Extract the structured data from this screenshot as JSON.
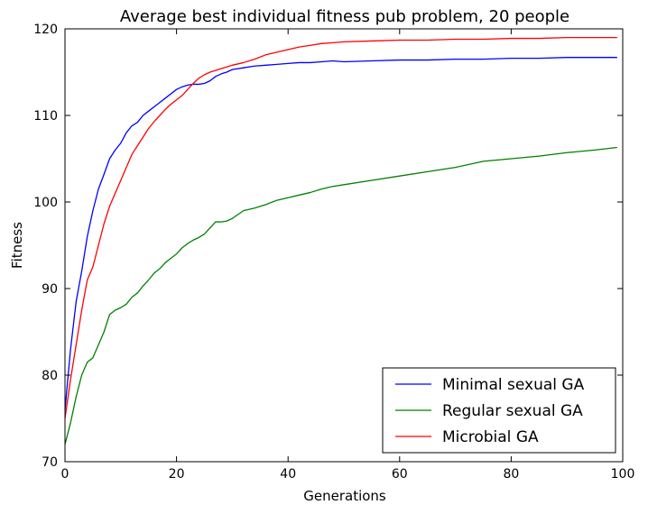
{
  "chart_data": {
    "type": "line",
    "title": "Average best individual fitness pub problem, 20 people",
    "xlabel": "Generations",
    "ylabel": "Fitness",
    "xlim": [
      0,
      100
    ],
    "ylim": [
      70,
      120
    ],
    "xticks": [
      0,
      20,
      40,
      60,
      80,
      100
    ],
    "yticks": [
      70,
      80,
      90,
      100,
      110,
      120
    ],
    "grid": false,
    "legend_position": "lower-right",
    "series": [
      {
        "name": "Minimal sexual GA",
        "color": "#0000ff",
        "x": [
          0,
          1,
          2,
          3,
          4,
          5,
          6,
          7,
          8,
          9,
          10,
          11,
          12,
          13,
          14,
          15,
          16,
          17,
          18,
          19,
          20,
          21,
          22,
          23,
          24,
          25,
          26,
          27,
          28,
          29,
          30,
          32,
          34,
          36,
          38,
          40,
          42,
          44,
          46,
          48,
          50,
          55,
          60,
          65,
          70,
          75,
          80,
          85,
          90,
          95,
          99
        ],
        "y": [
          76.0,
          83.0,
          88.5,
          92.0,
          96.0,
          99.0,
          101.5,
          103.2,
          105.0,
          106.0,
          106.8,
          108.0,
          108.8,
          109.2,
          110.0,
          110.5,
          111.0,
          111.5,
          112.0,
          112.5,
          113.0,
          113.3,
          113.5,
          113.6,
          113.6,
          113.7,
          114.0,
          114.5,
          114.8,
          115.0,
          115.3,
          115.5,
          115.7,
          115.8,
          115.9,
          116.0,
          116.1,
          116.1,
          116.2,
          116.3,
          116.2,
          116.3,
          116.4,
          116.4,
          116.5,
          116.5,
          116.6,
          116.6,
          116.7,
          116.7,
          116.7
        ]
      },
      {
        "name": "Regular sexual GA",
        "color": "#008000",
        "x": [
          0,
          1,
          2,
          3,
          4,
          5,
          6,
          7,
          8,
          9,
          10,
          11,
          12,
          13,
          14,
          15,
          16,
          17,
          18,
          19,
          20,
          21,
          22,
          23,
          24,
          25,
          26,
          27,
          28,
          29,
          30,
          32,
          34,
          36,
          38,
          40,
          42,
          44,
          46,
          48,
          50,
          55,
          60,
          65,
          70,
          75,
          80,
          85,
          90,
          95,
          99
        ],
        "y": [
          72.0,
          74.5,
          77.5,
          80.0,
          81.5,
          82.0,
          83.5,
          85.0,
          87.0,
          87.5,
          87.8,
          88.2,
          89.0,
          89.5,
          90.3,
          91.0,
          91.8,
          92.3,
          93.0,
          93.5,
          94.0,
          94.7,
          95.2,
          95.6,
          95.9,
          96.3,
          97.0,
          97.7,
          97.7,
          97.8,
          98.1,
          99.0,
          99.3,
          99.7,
          100.2,
          100.5,
          100.8,
          101.1,
          101.5,
          101.8,
          102.0,
          102.5,
          103.0,
          103.5,
          104.0,
          104.7,
          105.0,
          105.3,
          105.7,
          106.0,
          106.3
        ]
      },
      {
        "name": "Microbial GA",
        "color": "#ff0000",
        "x": [
          0,
          1,
          2,
          3,
          4,
          5,
          6,
          7,
          8,
          9,
          10,
          11,
          12,
          13,
          14,
          15,
          16,
          17,
          18,
          19,
          20,
          21,
          22,
          23,
          24,
          25,
          26,
          27,
          28,
          29,
          30,
          32,
          34,
          36,
          38,
          40,
          42,
          44,
          46,
          48,
          50,
          55,
          60,
          65,
          70,
          75,
          80,
          85,
          90,
          95,
          99
        ],
        "y": [
          75.0,
          79.5,
          83.5,
          87.5,
          91.0,
          92.5,
          95.0,
          97.5,
          99.5,
          101.0,
          102.5,
          104.0,
          105.5,
          106.5,
          107.5,
          108.5,
          109.3,
          110.0,
          110.7,
          111.3,
          111.8,
          112.3,
          113.0,
          113.7,
          114.3,
          114.7,
          115.0,
          115.2,
          115.4,
          115.6,
          115.8,
          116.1,
          116.5,
          117.0,
          117.3,
          117.6,
          117.9,
          118.1,
          118.3,
          118.4,
          118.5,
          118.6,
          118.7,
          118.7,
          118.8,
          118.8,
          118.9,
          118.9,
          119.0,
          119.0,
          119.0
        ]
      }
    ]
  }
}
